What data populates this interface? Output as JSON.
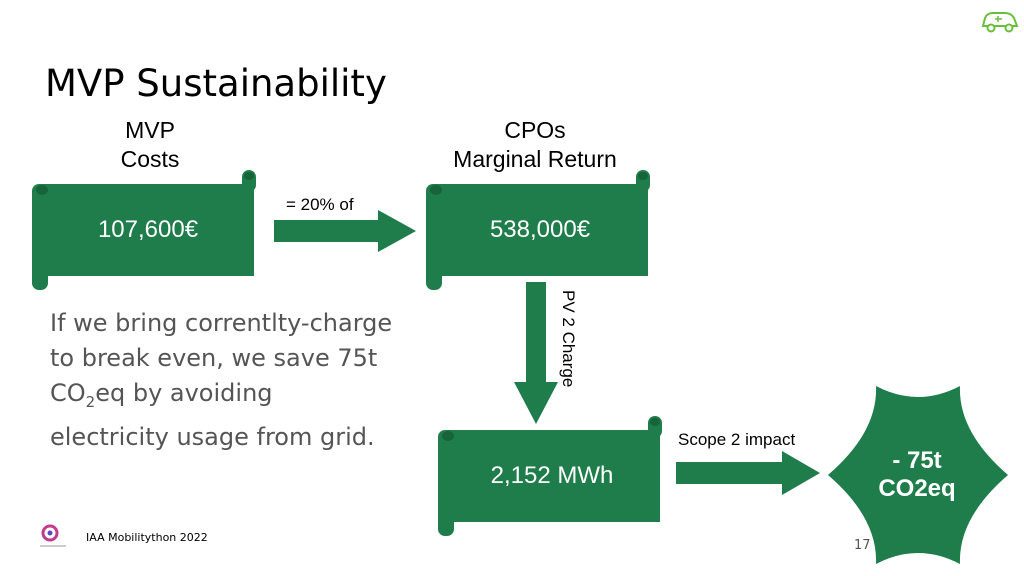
{
  "slide": {
    "title": "MVP Sustainability",
    "mvp_costs_label": [
      "MVP",
      "Costs"
    ],
    "mvp_costs_value": "107,600€",
    "arrow1_label": "= 20% of",
    "cpo_label": [
      "CPOs",
      "Marginal Return"
    ],
    "cpo_value": "538,000€",
    "arrow2_label": "PV 2 Charge",
    "energy_value": "2,152 MWh",
    "arrow3_label": "Scope 2 impact",
    "result_line1": "- 75t",
    "result_line2": "CO2eq",
    "body_text_1": "If we bring correntlty-charge",
    "body_text_2": "to break even, we save 75t",
    "body_text_3_pre": "CO",
    "body_text_3_sub": "2",
    "body_text_3_post": "eq by avoiding",
    "body_text_4": "electricity usage from grid.",
    "footer": "IAA Mobilitython 2022",
    "page_number": "17",
    "colors": {
      "green": "#1e7d4a",
      "green_dark": "#17643a",
      "text_gray": "#555555"
    },
    "icons": [
      "electric-car-logo-icon",
      "company-logo-icon"
    ]
  }
}
